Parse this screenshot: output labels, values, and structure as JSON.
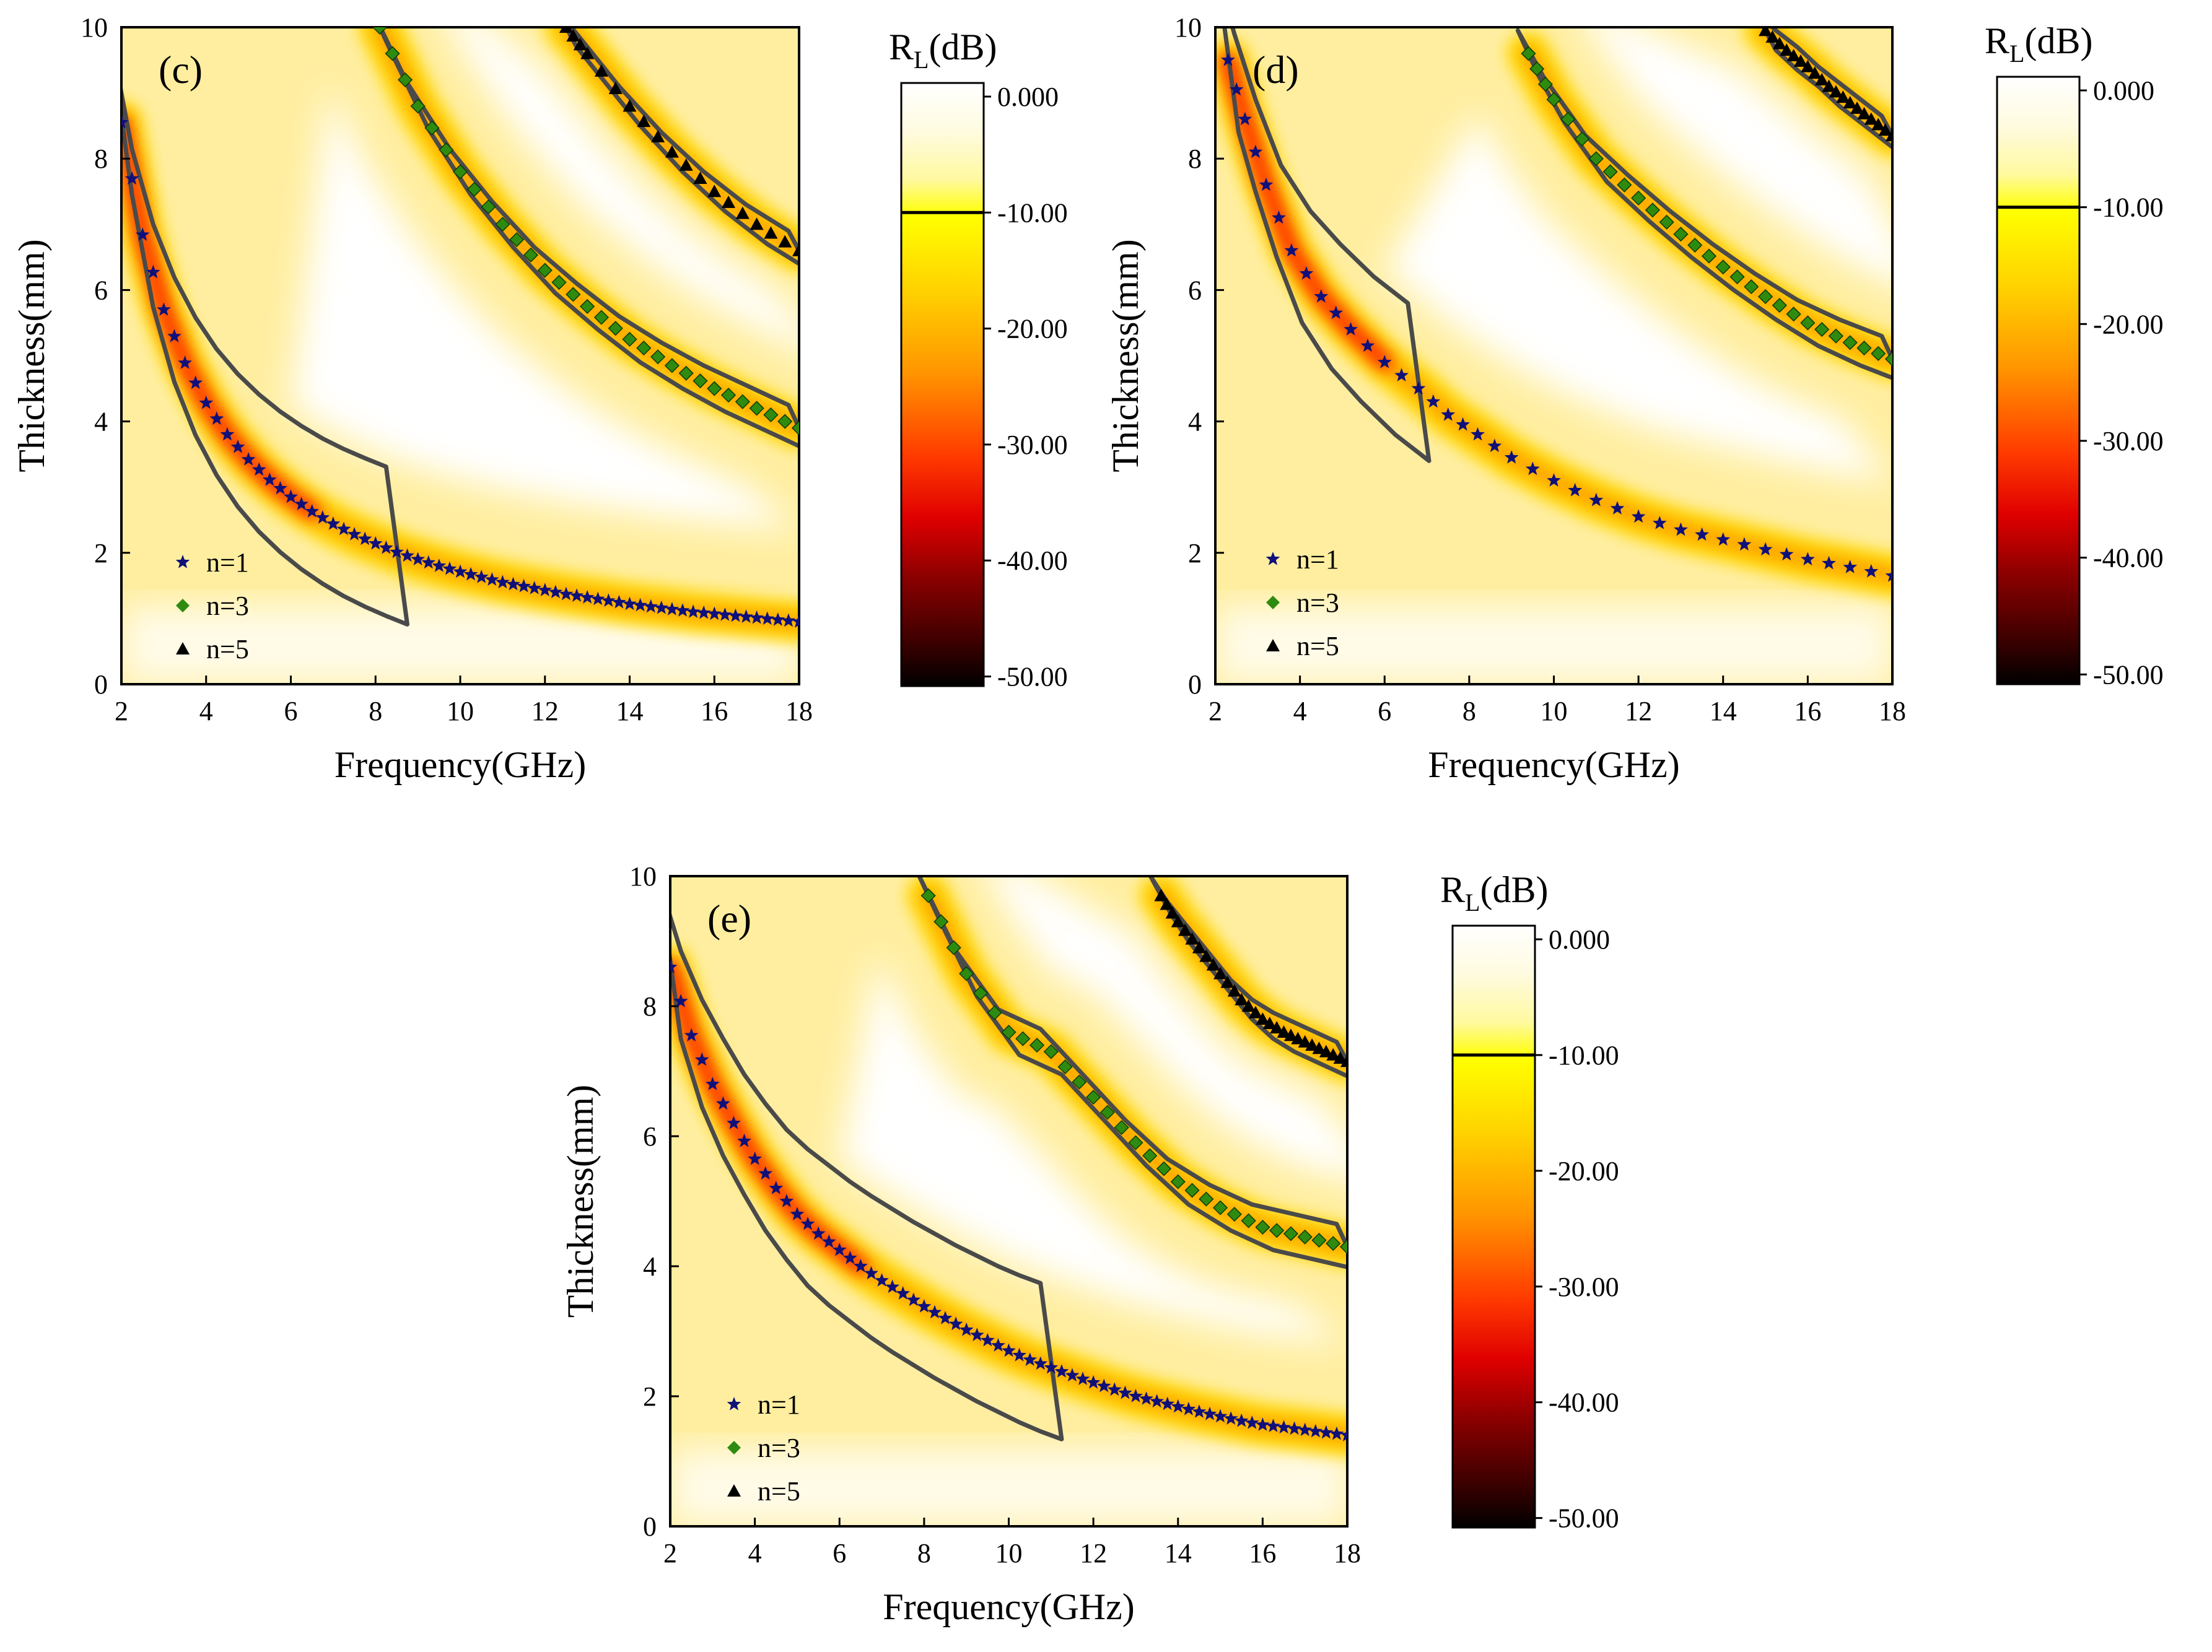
{
  "chart_data": [
    {
      "id": "c",
      "type": "heatmap",
      "panel_label": "(c)",
      "xlabel": "Frequency(GHz)",
      "ylabel": "Thickness(mm)",
      "xlim": [
        2,
        18
      ],
      "ylim": [
        0,
        10
      ],
      "xticks": [
        "2",
        "4",
        "6",
        "8",
        "10",
        "12",
        "14",
        "16",
        "18"
      ],
      "yticks": [
        "0",
        "2",
        "4",
        "6",
        "8",
        "10"
      ],
      "colorbar": {
        "title_main": "R",
        "title_sub": "L",
        "title_unit": "(dB)",
        "ticks": [
          "0.000",
          "-10.00",
          "-20.00",
          "-30.00",
          "-40.00",
          "-50.00"
        ],
        "range": [
          0,
          -52
        ],
        "contour_level": -10
      },
      "legend": [
        "n=1",
        "n=3",
        "n=5"
      ],
      "series": [
        {
          "name": "n=1",
          "marker": "star",
          "color": "#10107a",
          "x": [
            2.0,
            2.5,
            3.0,
            3.5,
            4.0,
            4.5,
            5.0,
            5.5,
            6.0,
            6.5,
            7.0,
            7.5,
            8.0,
            8.5,
            9.0,
            9.5,
            10.0,
            10.5,
            11.0,
            11.5,
            12.0,
            12.5,
            13.0,
            13.5,
            14.0,
            14.5,
            15.0,
            15.5,
            16.0,
            16.5,
            17.0,
            17.5,
            18.0
          ],
          "y": [
            8.55,
            6.84,
            5.7,
            4.89,
            4.28,
            3.8,
            3.42,
            3.11,
            2.85,
            2.63,
            2.44,
            2.28,
            2.14,
            2.01,
            1.9,
            1.8,
            1.71,
            1.63,
            1.55,
            1.49,
            1.43,
            1.37,
            1.32,
            1.27,
            1.22,
            1.18,
            1.14,
            1.1,
            1.07,
            1.04,
            1.01,
            0.98,
            0.95
          ]
        },
        {
          "name": "n=3",
          "marker": "diamond",
          "color": "#2e8b10",
          "x": [
            8.1,
            9,
            10,
            11,
            12,
            13,
            14,
            15,
            16,
            17,
            18
          ],
          "y": [
            10,
            8.8,
            7.8,
            7.0,
            6.3,
            5.75,
            5.25,
            4.85,
            4.5,
            4.2,
            3.9
          ]
        },
        {
          "name": "n=5",
          "marker": "triangle",
          "color": "#000000",
          "x": [
            12.5,
            13,
            14,
            15,
            16,
            17,
            18
          ],
          "y": [
            10,
            9.6,
            8.8,
            8.1,
            7.5,
            7.0,
            6.6
          ]
        }
      ]
    },
    {
      "id": "d",
      "type": "heatmap",
      "panel_label": "(d)",
      "xlabel": "Frequency(GHz)",
      "ylabel": "Thickness(mm)",
      "xlim": [
        2,
        18
      ],
      "ylim": [
        0,
        10
      ],
      "xticks": [
        "2",
        "4",
        "6",
        "8",
        "10",
        "12",
        "14",
        "16",
        "18"
      ],
      "yticks": [
        "0",
        "2",
        "4",
        "6",
        "8",
        "10"
      ],
      "colorbar": {
        "title_main": "R",
        "title_sub": "L",
        "title_unit": "(dB)",
        "ticks": [
          "0.000",
          "-10.00",
          "-20.00",
          "-30.00",
          "-40.00",
          "-50.00"
        ],
        "range": [
          0,
          -52
        ],
        "contour_level": -10
      },
      "legend": [
        "n=1",
        "n=3",
        "n=5"
      ],
      "series": [
        {
          "name": "n=1",
          "marker": "star",
          "color": "#10107a",
          "x": [
            2.3,
            2.7,
            3.2,
            3.8,
            4.5,
            5.2,
            6.0,
            6.8,
            7.5,
            8.2,
            9.0,
            10,
            11,
            12,
            13,
            14,
            15,
            16,
            17,
            18
          ],
          "y": [
            9.5,
            8.6,
            7.6,
            6.6,
            5.9,
            5.4,
            4.9,
            4.5,
            4.1,
            3.8,
            3.45,
            3.1,
            2.8,
            2.55,
            2.35,
            2.2,
            2.05,
            1.9,
            1.78,
            1.65
          ]
        },
        {
          "name": "n=3",
          "marker": "diamond",
          "color": "#2e8b10",
          "x": [
            9.4,
            10,
            11,
            12,
            13,
            14,
            15,
            16,
            17,
            18
          ],
          "y": [
            9.6,
            8.9,
            8.0,
            7.4,
            6.85,
            6.35,
            5.9,
            5.5,
            5.2,
            4.95
          ]
        },
        {
          "name": "n=5",
          "marker": "triangle",
          "color": "#000000",
          "x": [
            15,
            15.5,
            16,
            16.5,
            17,
            17.5,
            18
          ],
          "y": [
            9.95,
            9.65,
            9.4,
            9.1,
            8.85,
            8.6,
            8.35
          ]
        }
      ]
    },
    {
      "id": "e",
      "type": "heatmap",
      "panel_label": "(e)",
      "xlabel": "Frequency(GHz)",
      "ylabel": "Thickness(mm)",
      "xlim": [
        2,
        18
      ],
      "ylim": [
        0,
        10
      ],
      "xticks": [
        "2",
        "4",
        "6",
        "8",
        "10",
        "12",
        "14",
        "16",
        "18"
      ],
      "yticks": [
        "0",
        "2",
        "4",
        "6",
        "8",
        "10"
      ],
      "colorbar": {
        "title_main": "R",
        "title_sub": "L",
        "title_unit": "(dB)",
        "ticks": [
          "0.000",
          "-10.00",
          "-20.00",
          "-30.00",
          "-40.00",
          "-50.00"
        ],
        "range": [
          0,
          -52
        ],
        "contour_level": -10
      },
      "legend": [
        "n=1",
        "n=3",
        "n=5"
      ],
      "series": [
        {
          "name": "n=1",
          "marker": "star",
          "color": "#10107a",
          "x": [
            2.0,
            2.5,
            3.0,
            3.5,
            4.0,
            4.5,
            5.0,
            5.5,
            6.0,
            6.5,
            7.0,
            7.5,
            8.0,
            8.5,
            9.0,
            9.5,
            10.0,
            10.5,
            11.0,
            11.5,
            12.0,
            12.5,
            13.0,
            13.5,
            14.0,
            14.5,
            15.0,
            15.5,
            16.0,
            16.5,
            17.0,
            17.5,
            18.0
          ],
          "y": [
            8.6,
            7.55,
            6.8,
            6.2,
            5.65,
            5.2,
            4.8,
            4.5,
            4.25,
            4.0,
            3.78,
            3.58,
            3.38,
            3.2,
            3.02,
            2.86,
            2.7,
            2.56,
            2.44,
            2.32,
            2.21,
            2.1,
            2.0,
            1.92,
            1.84,
            1.76,
            1.69,
            1.62,
            1.56,
            1.52,
            1.48,
            1.44,
            1.4
          ]
        },
        {
          "name": "n=3",
          "marker": "diamond",
          "color": "#2e8b10",
          "x": [
            8.1,
            9,
            10,
            11,
            12,
            13,
            14,
            15,
            16,
            17,
            18
          ],
          "y": [
            9.7,
            8.5,
            7.6,
            7.3,
            6.6,
            5.9,
            5.3,
            4.9,
            4.6,
            4.45,
            4.3
          ]
        },
        {
          "name": "n=5",
          "marker": "triangle",
          "color": "#000000",
          "x": [
            13.6,
            14,
            14.5,
            15,
            15.5,
            16,
            16.5,
            17,
            17.5,
            18
          ],
          "y": [
            9.7,
            9.3,
            8.9,
            8.5,
            8.1,
            7.8,
            7.6,
            7.45,
            7.3,
            7.15
          ]
        }
      ]
    }
  ]
}
